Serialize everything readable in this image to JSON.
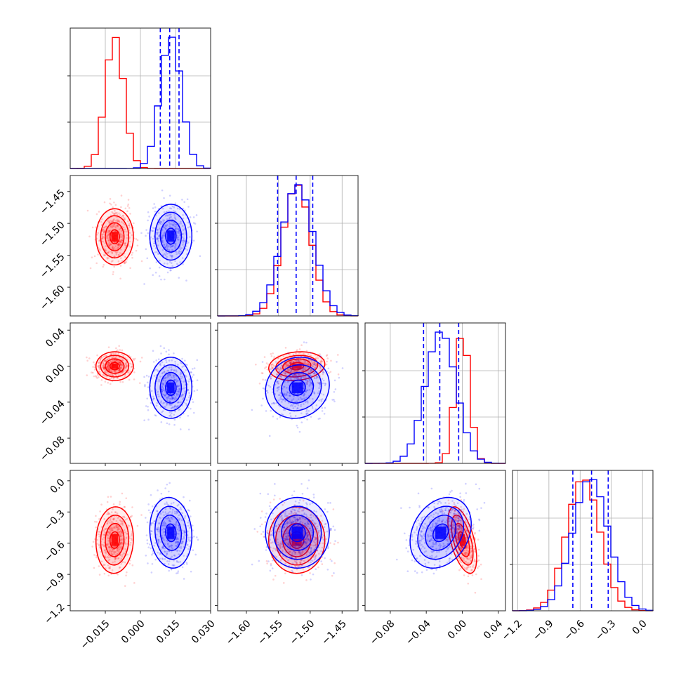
{
  "chart_data": {
    "type": "corner",
    "title": "",
    "grid": true,
    "legend": "none",
    "colors": {
      "series_a": "#ff0000",
      "series_b": "#0000ff",
      "quantile_lines": "#0000ff"
    },
    "parameters": [
      {
        "index": 0,
        "label": "",
        "range": [
          -0.03,
          0.03
        ],
        "ticks": [
          -0.015,
          0.0,
          0.015,
          0.03
        ],
        "tick_labels": [
          "−0.015",
          "0.000",
          "0.015",
          "0.030"
        ]
      },
      {
        "index": 1,
        "label": "",
        "range": [
          -1.645,
          -1.425
        ],
        "ticks": [
          -1.6,
          -1.55,
          -1.5,
          -1.45
        ],
        "tick_labels": [
          "−1.60",
          "−1.55",
          "−1.50",
          "−1.45"
        ]
      },
      {
        "index": 2,
        "label": "",
        "range": [
          -0.108,
          0.048
        ],
        "ticks": [
          -0.08,
          -0.04,
          0.0,
          0.04
        ],
        "tick_labels": [
          "−0.08",
          "−0.04",
          "0.00",
          "0.04"
        ]
      },
      {
        "index": 3,
        "label": "",
        "range": [
          -1.25,
          0.1
        ],
        "ticks": [
          -1.2,
          -0.9,
          -0.6,
          -0.3,
          0.0
        ],
        "tick_labels": [
          "−1.2",
          "−0.9",
          "−0.6",
          "−0.3",
          "0.0"
        ]
      }
    ],
    "series": [
      {
        "color": "#ff0000",
        "mean": [
          -0.011,
          -1.521,
          0.0,
          -0.57
        ],
        "std": [
          0.004,
          0.022,
          0.008,
          0.16
        ],
        "rho": [
          [
            1,
            0,
            0,
            0.05
          ],
          [
            0,
            1,
            0.15,
            0
          ],
          [
            0,
            0.15,
            1,
            -0.55
          ],
          [
            0.05,
            0,
            -0.55,
            1
          ]
        ]
      },
      {
        "color": "#0000ff",
        "mean": [
          0.013,
          -1.52,
          -0.024,
          -0.5
        ],
        "std": [
          0.0045,
          0.025,
          0.017,
          0.17
        ],
        "rho": [
          [
            1,
            0,
            0,
            -0.1
          ],
          [
            0,
            1,
            0.1,
            0
          ],
          [
            0,
            0.1,
            1,
            0.25
          ],
          [
            -0.1,
            0,
            0.25,
            1
          ]
        ]
      }
    ],
    "quantiles": [
      [
        0.0085,
        0.0125,
        0.0165
      ],
      [
        -1.551,
        -1.522,
        -1.496
      ],
      [
        -0.043,
        -0.025,
        -0.004
      ],
      [
        -0.67,
        -0.49,
        -0.33
      ]
    ]
  }
}
